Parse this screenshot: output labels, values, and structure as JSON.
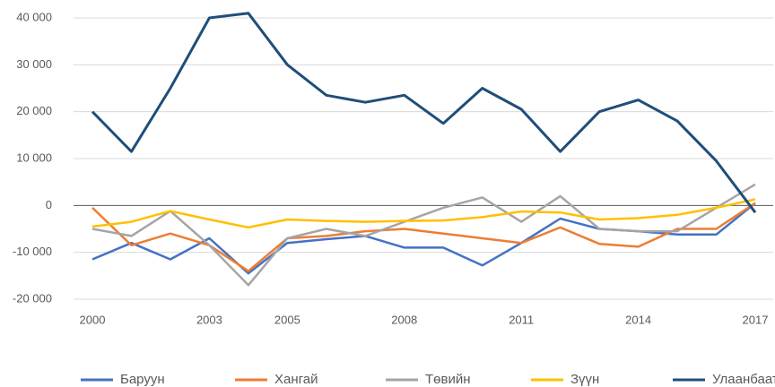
{
  "chart_data": {
    "type": "line",
    "categories": [
      "2000",
      null,
      null,
      "2003",
      null,
      "2005",
      null,
      null,
      "2008",
      null,
      null,
      "2011",
      null,
      null,
      "2014",
      null,
      null,
      "2017"
    ],
    "ylim": [
      -20000,
      40000
    ],
    "yticks": [
      {
        "value": -20000,
        "label": "-20 000"
      },
      {
        "value": -10000,
        "label": "-10 000"
      },
      0,
      {
        "value": 10000,
        "label": "10 000"
      },
      {
        "value": 20000,
        "label": "20 000"
      },
      {
        "value": 30000,
        "label": "30 000"
      },
      {
        "value": 40000,
        "label": "40 000"
      }
    ],
    "grid": true,
    "legend": "bottom",
    "series": [
      {
        "name": "Баруун",
        "color": "#4472c4",
        "values": [
          -11500,
          -8000,
          -11500,
          -7000,
          -14500,
          -8000,
          -7200,
          -6500,
          -9000,
          -9000,
          -12800,
          -8000,
          -2800,
          -5000,
          -5500,
          -6200,
          -6200,
          500
        ]
      },
      {
        "name": "Хангай",
        "color": "#ed7d31",
        "values": [
          -500,
          -8500,
          -6000,
          -8500,
          -14000,
          -7000,
          -6500,
          -5500,
          -5000,
          -6000,
          -7000,
          -8000,
          -4700,
          -8200,
          -8800,
          -5000,
          -5000,
          500
        ]
      },
      {
        "name": "Төвийн",
        "color": "#a5a5a5",
        "values": [
          -5000,
          -6500,
          -1200,
          -8500,
          -17000,
          -7000,
          -5000,
          -6500,
          -3500,
          -500,
          1700,
          -3500,
          2000,
          -5000,
          -5500,
          -5500,
          -500,
          4500
        ]
      },
      {
        "name": "Зүүн",
        "color": "#ffc000",
        "values": [
          -4500,
          -3500,
          -1200,
          -3000,
          -4700,
          -3000,
          -3300,
          -3500,
          -3300,
          -3200,
          -2500,
          -1300,
          -1500,
          -3000,
          -2700,
          -2000,
          -500,
          1300
        ]
      },
      {
        "name": "Улаанбаатар",
        "color": "#1f4e79",
        "values": [
          20000,
          11500,
          25000,
          40000,
          41000,
          30000,
          23500,
          22000,
          23500,
          17500,
          25000,
          20500,
          11500,
          20000,
          22500,
          18000,
          9500,
          -1500
        ]
      }
    ]
  }
}
